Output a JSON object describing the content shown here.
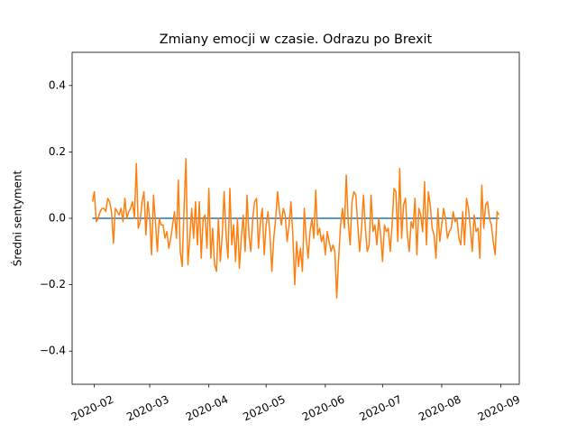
{
  "chart_data": {
    "type": "line",
    "title": "Zmiany emocji w czasie. Odrazu po Brexit",
    "ylabel": "Średni sentyment",
    "categories": [
      null,
      "2020-02",
      null,
      null,
      null,
      null,
      null,
      null,
      null,
      null,
      null,
      null,
      null,
      null,
      null,
      null,
      null,
      null,
      null,
      null,
      null,
      null,
      null,
      null,
      null,
      null,
      null,
      null,
      null,
      null,
      "2020-03",
      null,
      null,
      null,
      null,
      null,
      null,
      null,
      null,
      null,
      null,
      null,
      null,
      null,
      null,
      null,
      null,
      null,
      null,
      null,
      null,
      null,
      null,
      null,
      null,
      null,
      null,
      null,
      null,
      null,
      null,
      "2020-04",
      null,
      null,
      null,
      null,
      null,
      null,
      null,
      null,
      null,
      null,
      null,
      null,
      null,
      null,
      null,
      null,
      null,
      null,
      null,
      null,
      null,
      null,
      null,
      null,
      null,
      null,
      null,
      null,
      null,
      "2020-05",
      null,
      null,
      null,
      null,
      null,
      null,
      null,
      null,
      null,
      null,
      null,
      null,
      null,
      null,
      null,
      null,
      null,
      null,
      null,
      null,
      null,
      null,
      null,
      null,
      null,
      null,
      null,
      null,
      null,
      null,
      "2020-06",
      null,
      null,
      null,
      null,
      null,
      null,
      null,
      null,
      null,
      null,
      null,
      null,
      null,
      null,
      null,
      null,
      null,
      null,
      null,
      null,
      null,
      null,
      null,
      null,
      null,
      null,
      null,
      null,
      null,
      "2020-07",
      null,
      null,
      null,
      null,
      null,
      null,
      null,
      null,
      null,
      null,
      null,
      null,
      null,
      null,
      null,
      null,
      null,
      null,
      null,
      null,
      null,
      null,
      null,
      null,
      null,
      null,
      null,
      null,
      null,
      null,
      "2020-08",
      null,
      null,
      null,
      null,
      null,
      null,
      null,
      null,
      null,
      null,
      null,
      null,
      null,
      null,
      null,
      null,
      null,
      null,
      null,
      null,
      null,
      null,
      null,
      null,
      null,
      null,
      null,
      null,
      null,
      null,
      "2020-09"
    ],
    "series": [
      {
        "color": "#1f77b4",
        "values": [
          0,
          0,
          0,
          0,
          0,
          0,
          0,
          0,
          0,
          0,
          0,
          0,
          0,
          0,
          0,
          0,
          0,
          0,
          0,
          0,
          0,
          0,
          0,
          0,
          0,
          0,
          0,
          0,
          0,
          0,
          0,
          0,
          0,
          0,
          0,
          0,
          0,
          0,
          0,
          0,
          0,
          0,
          0,
          0,
          0,
          0,
          0,
          0,
          0,
          0,
          0,
          0,
          0,
          0,
          0,
          0,
          0,
          0,
          0,
          0,
          0,
          0,
          0,
          0,
          0,
          0,
          0,
          0,
          0,
          0,
          0,
          0,
          0,
          0,
          0,
          0,
          0,
          0,
          0,
          0,
          0,
          0,
          0,
          0,
          0,
          0,
          0,
          0,
          0,
          0,
          0,
          0,
          0,
          0,
          0,
          0,
          0,
          0,
          0,
          0,
          0,
          0,
          0,
          0,
          0,
          0,
          0,
          0,
          0,
          0,
          0,
          0,
          0,
          0,
          0,
          0,
          0,
          0,
          0,
          0,
          0,
          0,
          0,
          0,
          0,
          0,
          0,
          0,
          0,
          0,
          0,
          0,
          0,
          0,
          0,
          0,
          0,
          0,
          0,
          0,
          0,
          0,
          0,
          0,
          0,
          0,
          0,
          0,
          0,
          0,
          0,
          0,
          0,
          0,
          0,
          0,
          0,
          0,
          0,
          0,
          0,
          0,
          0,
          0,
          0,
          0,
          0,
          0,
          0,
          0,
          0,
          0,
          0,
          0,
          0,
          0,
          0,
          0,
          0,
          0,
          0,
          0,
          0,
          0,
          0,
          0,
          0,
          0,
          0,
          0,
          0,
          0,
          0,
          0,
          0,
          0,
          0,
          0,
          0,
          0,
          0,
          0,
          0,
          0,
          0,
          0,
          0,
          0,
          0,
          0,
          0,
          0,
          0,
          0,
          null
        ]
      },
      {
        "color": "#ff7f0e",
        "values": [
          0.05,
          0.08,
          -0.01,
          0.0,
          0.02,
          0.03,
          0.03,
          0.02,
          0.06,
          0.05,
          0.02,
          -0.075,
          0.03,
          0.02,
          0.01,
          0.03,
          -0.01,
          0.06,
          0.0,
          0.02,
          0.03,
          0.05,
          0.0,
          0.165,
          -0.03,
          -0.01,
          0.05,
          0.08,
          -0.05,
          0.05,
          0.0,
          -0.11,
          0.07,
          -0.01,
          -0.1,
          0.0,
          -0.02,
          -0.02,
          -0.06,
          -0.04,
          -0.09,
          -0.06,
          -0.02,
          0.02,
          -0.06,
          0.115,
          -0.1,
          -0.145,
          0.03,
          0.18,
          -0.14,
          -0.06,
          0.03,
          -0.06,
          0.05,
          -0.08,
          0.05,
          -0.12,
          0.0,
          0.01,
          -0.09,
          0.09,
          -0.12,
          -0.03,
          -0.14,
          -0.16,
          0.0,
          -0.13,
          -0.05,
          0.08,
          -0.05,
          -0.12,
          0.09,
          -0.08,
          -0.02,
          -0.13,
          0.0,
          -0.15,
          -0.06,
          0.01,
          -0.1,
          0.07,
          -0.05,
          -0.1,
          0.0,
          0.05,
          0.06,
          -0.09,
          -0.01,
          0.03,
          -0.11,
          -0.02,
          0.02,
          -0.05,
          -0.16,
          -0.06,
          0.0,
          0.08,
          0.02,
          -0.02,
          0.03,
          0.01,
          -0.07,
          -0.02,
          0.05,
          -0.05,
          -0.2,
          -0.07,
          -0.145,
          -0.09,
          -0.16,
          0.03,
          -0.06,
          -0.12,
          -0.04,
          0.0,
          -0.06,
          0.085,
          -0.05,
          -0.03,
          -0.07,
          -0.05,
          -0.11,
          -0.04,
          -0.07,
          -0.1,
          -0.08,
          -0.1,
          -0.24,
          -0.12,
          -0.02,
          0.03,
          -0.03,
          0.13,
          -0.01,
          -0.08,
          0.05,
          0.08,
          0.07,
          -0.02,
          -0.1,
          -0.03,
          0.07,
          -0.03,
          -0.1,
          -0.08,
          0.07,
          -0.04,
          -0.02,
          -0.08,
          0.0,
          -0.05,
          -0.13,
          -0.02,
          -0.04,
          -0.03,
          -0.1,
          -0.02,
          0.09,
          0.08,
          -0.07,
          0.15,
          -0.06,
          0.04,
          0.06,
          -0.05,
          -0.1,
          -0.01,
          -0.03,
          0.06,
          -0.11,
          0.03,
          0.01,
          -0.04,
          0.11,
          -0.08,
          0.08,
          0.04,
          -0.03,
          -0.05,
          -0.12,
          0.03,
          -0.07,
          -0.02,
          0.03,
          0.0,
          -0.06,
          -0.04,
          -0.03,
          0.02,
          -0.01,
          0.0,
          -0.06,
          -0.08,
          0.02,
          -0.08,
          0.06,
          0.03,
          -0.03,
          -0.1,
          0.01,
          -0.04,
          -0.03,
          -0.12,
          0.1,
          -0.03,
          0.04,
          0.05,
          0.0,
          -0.02,
          -0.07,
          -0.11,
          0.02,
          0.01,
          null
        ]
      }
    ],
    "ylim": [
      -0.5,
      0.5
    ],
    "yticks": [
      {
        "value": -0.4,
        "label": "−0.4"
      },
      {
        "value": -0.2,
        "label": "−0.2"
      },
      {
        "value": 0.0,
        "label": "0.0"
      },
      {
        "value": 0.2,
        "label": "0.2"
      },
      {
        "value": 0.4,
        "label": "0.4"
      }
    ],
    "grid": false
  }
}
